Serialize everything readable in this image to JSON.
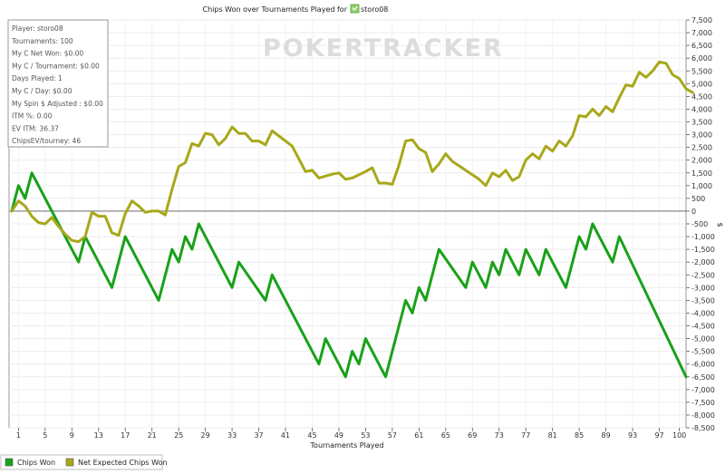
{
  "chart_data": {
    "type": "line",
    "title": "Chips Won over Tournaments Played for",
    "player_name": "storo08",
    "xlabel": "Tournaments Played",
    "ylabel": "$",
    "xlim": [
      0,
      100
    ],
    "ylim": [
      -8500,
      7500
    ],
    "x_ticks": [
      1,
      5,
      9,
      13,
      17,
      21,
      25,
      29,
      33,
      37,
      41,
      45,
      49,
      53,
      57,
      61,
      65,
      69,
      73,
      77,
      81,
      85,
      89,
      93,
      97,
      100
    ],
    "y_ticks": [
      7500,
      7000,
      6500,
      6000,
      5500,
      5000,
      4500,
      4000,
      3500,
      3000,
      2500,
      2000,
      1500,
      1000,
      500,
      0,
      -500,
      -1000,
      -1500,
      -2000,
      -2500,
      -3000,
      -3500,
      -4000,
      -4500,
      -5000,
      -5500,
      -6000,
      -6500,
      -7000,
      -7500,
      -8000,
      -8500
    ],
    "grid": true,
    "legend_position": "bottom-left",
    "watermark": "POKERTRACKER",
    "series": [
      {
        "name": "Chips Won",
        "color": "#19a119",
        "points": [
          [
            0,
            0
          ],
          [
            1,
            1000
          ],
          [
            2,
            500
          ],
          [
            3,
            1500
          ],
          [
            7,
            -500
          ],
          [
            10,
            -2000
          ],
          [
            11,
            -1000
          ],
          [
            15,
            -3000
          ],
          [
            17,
            -1000
          ],
          [
            22,
            -3500
          ],
          [
            24,
            -1500
          ],
          [
            25,
            -2000
          ],
          [
            26,
            -1000
          ],
          [
            27,
            -1500
          ],
          [
            28,
            -500
          ],
          [
            33,
            -3000
          ],
          [
            34,
            -2000
          ],
          [
            38,
            -3500
          ],
          [
            39,
            -2500
          ],
          [
            46,
            -6000
          ],
          [
            47,
            -5000
          ],
          [
            50,
            -6500
          ],
          [
            51,
            -5500
          ],
          [
            52,
            -6000
          ],
          [
            53,
            -5000
          ],
          [
            56,
            -6500
          ],
          [
            59,
            -3500
          ],
          [
            60,
            -4000
          ],
          [
            61,
            -3000
          ],
          [
            62,
            -3500
          ],
          [
            64,
            -1500
          ],
          [
            68,
            -3000
          ],
          [
            69,
            -2000
          ],
          [
            71,
            -3000
          ],
          [
            72,
            -2000
          ],
          [
            73,
            -2500
          ],
          [
            74,
            -1500
          ],
          [
            76,
            -2500
          ],
          [
            77,
            -1500
          ],
          [
            79,
            -2500
          ],
          [
            80,
            -1500
          ],
          [
            83,
            -3000
          ],
          [
            85,
            -1000
          ],
          [
            86,
            -1500
          ],
          [
            87,
            -500
          ],
          [
            90,
            -2000
          ],
          [
            91,
            -1000
          ],
          [
            101,
            -6500
          ]
        ]
      },
      {
        "name": "Net Expected Chips Won",
        "color": "#a8a81a",
        "points": [
          [
            0,
            0
          ],
          [
            1,
            400
          ],
          [
            2,
            200
          ],
          [
            3,
            -200
          ],
          [
            4,
            -450
          ],
          [
            5,
            -500
          ],
          [
            6,
            -250
          ],
          [
            7,
            -600
          ],
          [
            8,
            -900
          ],
          [
            9,
            -1150
          ],
          [
            10,
            -1200
          ],
          [
            11,
            -1000
          ],
          [
            12,
            -50
          ],
          [
            13,
            -200
          ],
          [
            14,
            -200
          ],
          [
            15,
            -850
          ],
          [
            16,
            -950
          ],
          [
            17,
            -100
          ],
          [
            18,
            400
          ],
          [
            19,
            200
          ],
          [
            20,
            -50
          ],
          [
            21,
            0
          ],
          [
            22,
            0
          ],
          [
            23,
            -150
          ],
          [
            24,
            850
          ],
          [
            25,
            1750
          ],
          [
            26,
            1900
          ],
          [
            27,
            2650
          ],
          [
            28,
            2550
          ],
          [
            29,
            3050
          ],
          [
            30,
            3000
          ],
          [
            31,
            2600
          ],
          [
            32,
            2850
          ],
          [
            33,
            3300
          ],
          [
            34,
            3050
          ],
          [
            35,
            3050
          ],
          [
            36,
            2750
          ],
          [
            37,
            2750
          ],
          [
            38,
            2600
          ],
          [
            39,
            3150
          ],
          [
            40,
            2950
          ],
          [
            41,
            2750
          ],
          [
            42,
            2550
          ],
          [
            44,
            1550
          ],
          [
            45,
            1600
          ],
          [
            46,
            1300
          ],
          [
            48,
            1450
          ],
          [
            49,
            1500
          ],
          [
            50,
            1250
          ],
          [
            51,
            1300
          ],
          [
            53,
            1550
          ],
          [
            54,
            1700
          ],
          [
            55,
            1100
          ],
          [
            56,
            1100
          ],
          [
            57,
            1050
          ],
          [
            58,
            1800
          ],
          [
            59,
            2750
          ],
          [
            60,
            2800
          ],
          [
            61,
            2450
          ],
          [
            62,
            2300
          ],
          [
            63,
            1550
          ],
          [
            64,
            1850
          ],
          [
            65,
            2250
          ],
          [
            66,
            1950
          ],
          [
            68,
            1600
          ],
          [
            70,
            1250
          ],
          [
            71,
            1000
          ],
          [
            72,
            1500
          ],
          [
            73,
            1350
          ],
          [
            74,
            1600
          ],
          [
            75,
            1200
          ],
          [
            76,
            1350
          ],
          [
            77,
            2000
          ],
          [
            78,
            2250
          ],
          [
            79,
            2050
          ],
          [
            80,
            2550
          ],
          [
            81,
            2350
          ],
          [
            82,
            2750
          ],
          [
            83,
            2550
          ],
          [
            84,
            2950
          ],
          [
            85,
            3750
          ],
          [
            86,
            3700
          ],
          [
            87,
            4000
          ],
          [
            88,
            3750
          ],
          [
            89,
            4100
          ],
          [
            90,
            3900
          ],
          [
            91,
            4450
          ],
          [
            92,
            4950
          ],
          [
            93,
            4900
          ],
          [
            94,
            5450
          ],
          [
            95,
            5250
          ],
          [
            96,
            5500
          ],
          [
            97,
            5850
          ],
          [
            98,
            5800
          ],
          [
            99,
            5350
          ],
          [
            100,
            5200
          ],
          [
            101,
            4800
          ],
          [
            102,
            4650
          ]
        ]
      }
    ],
    "info_box": [
      "Player: storo08",
      "Tournaments: 100",
      "My C Net Won: $0.00",
      "My C / Tournament: $0.00",
      "Days Played: 1",
      "My C / Day: $0.00",
      "My Spin $ Adjusted : $0.00",
      "ITM %: 0.00",
      "EV ITM: 36.37",
      "ChipsEV/tourney: 46"
    ]
  }
}
